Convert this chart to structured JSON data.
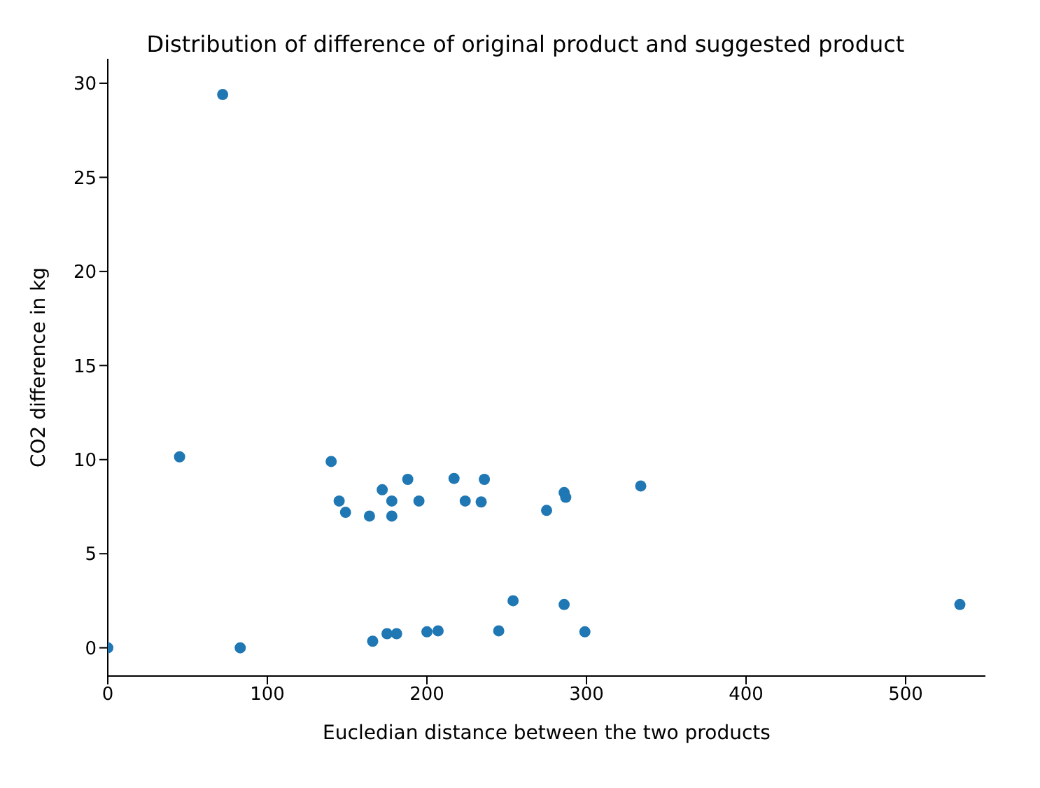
{
  "chart_data": {
    "type": "scatter",
    "title": "Distribution of difference of original product and suggested product",
    "xlabel": "Eucledian distance between the two products",
    "ylabel": "CO2 difference in kg",
    "x": [
      0,
      45,
      72,
      83,
      140,
      145,
      149,
      164,
      172,
      178,
      178,
      188,
      195,
      217,
      224,
      234,
      236,
      275,
      286,
      287,
      334,
      166,
      175,
      181,
      200,
      207,
      245,
      254,
      286,
      299,
      534
    ],
    "values": [
      0,
      10.15,
      29.4,
      0,
      9.9,
      7.8,
      7.2,
      7.0,
      8.4,
      7.8,
      7.0,
      8.95,
      7.8,
      9.0,
      7.8,
      7.75,
      8.95,
      7.3,
      8.25,
      8.0,
      8.6,
      0.35,
      0.75,
      0.75,
      0.85,
      0.9,
      0.9,
      2.5,
      2.3,
      0.85,
      2.3
    ],
    "color": "#1f77b4",
    "marker": "circle",
    "grid": false,
    "legend": false,
    "xlim": [
      0,
      550
    ],
    "ylim": [
      -1.5,
      31.3
    ],
    "xticks": [
      0,
      100,
      200,
      300,
      400,
      500
    ],
    "yticks": [
      0,
      5,
      10,
      15,
      20,
      25,
      30
    ]
  }
}
